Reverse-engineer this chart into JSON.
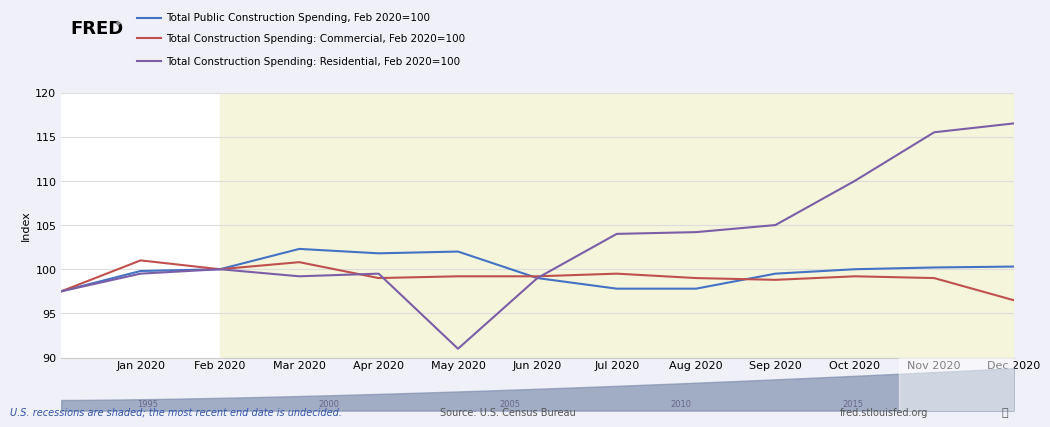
{
  "title_fred": "FRED",
  "legend_entries": [
    "Total Public Construction Spending, Feb 2020=100",
    "Total Construction Spending: Commercial, Feb 2020=100",
    "Total Construction Spending: Residential, Feb 2020=100"
  ],
  "line_colors": [
    "#4472c4",
    "#c0504d",
    "#7b5ea7"
  ],
  "x_labels": [
    "Jan 2020",
    "Feb 2020",
    "Mar 2020",
    "Apr 2020",
    "May 2020",
    "Jun 2020",
    "Jul 2020",
    "Aug 2020",
    "Sep 2020",
    "Oct 2020",
    "Nov 2020",
    "Dec 2020"
  ],
  "x_values": [
    0,
    1,
    2,
    3,
    4,
    5,
    6,
    7,
    8,
    9,
    10,
    11,
    12
  ],
  "x_tick_positions": [
    1,
    2,
    3,
    4,
    5,
    6,
    7,
    8,
    9,
    10,
    11,
    12
  ],
  "public_spending": [
    97.5,
    99.8,
    100.0,
    102.3,
    101.8,
    102.0,
    99.0,
    97.8,
    97.8,
    99.5,
    100.0,
    100.2,
    100.3
  ],
  "commercial_spending": [
    97.5,
    101.0,
    100.0,
    100.8,
    99.0,
    99.2,
    99.2,
    99.5,
    99.0,
    98.8,
    99.2,
    99.0,
    96.5
  ],
  "residential_spending": [
    97.5,
    99.5,
    100.0,
    99.2,
    99.5,
    91.0,
    99.0,
    104.0,
    104.2,
    105.0,
    110.0,
    115.5,
    116.5
  ],
  "ylim": [
    90,
    120
  ],
  "yticks": [
    90,
    95,
    100,
    105,
    110,
    115,
    120
  ],
  "ylabel": "Index",
  "recession_start": 2,
  "recession_end": 12,
  "bg_color_main": "#f0f0f8",
  "bg_color_plot": "#ffffff",
  "bg_color_recession": "#f5f5dc",
  "header_bg": "#d0d8e8",
  "footer_text_left": "U.S. recessions are shaded; the most recent end date is undecided.",
  "footer_text_mid": "Source: U.S. Census Bureau",
  "footer_text_right": "fred.stlouisfed.org",
  "minimap_bg": "#b0c0d8",
  "minimap_fill": "#8090b0"
}
